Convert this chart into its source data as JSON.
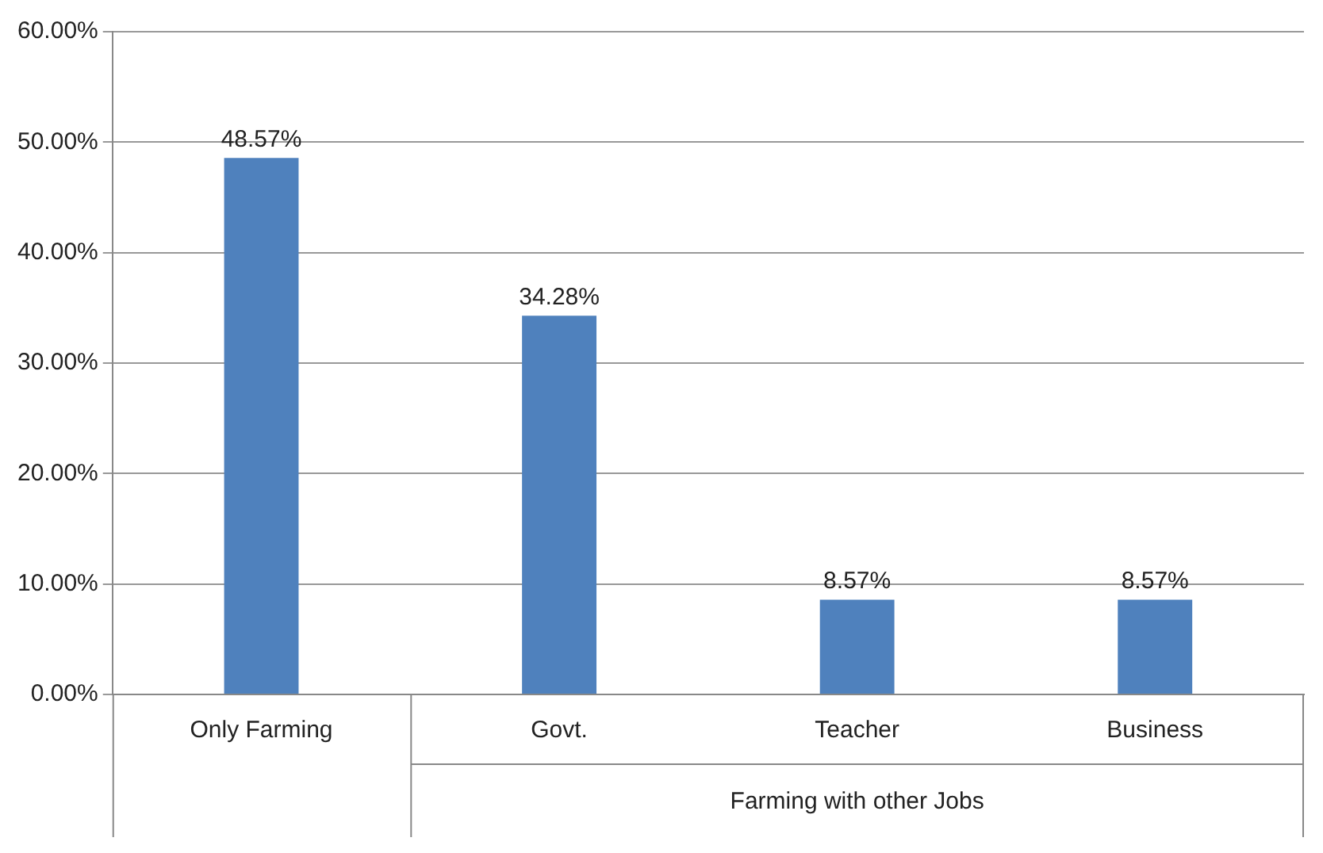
{
  "chart_data": {
    "type": "bar",
    "categories": [
      "Only Farming",
      "Govt.",
      "Teacher",
      "Business"
    ],
    "values": [
      48.57,
      34.28,
      8.57,
      8.57
    ],
    "value_labels": [
      "48.57%",
      "34.28%",
      "8.57%",
      "8.57%"
    ],
    "color": "#4f81bd",
    "ylim": [
      0,
      60
    ],
    "yticks": [
      {
        "value": 0,
        "label": "0.00%"
      },
      {
        "value": 10,
        "label": "10.00%"
      },
      {
        "value": 20,
        "label": "20.00%"
      },
      {
        "value": 30,
        "label": "30.00%"
      },
      {
        "value": 40,
        "label": "40.00%"
      },
      {
        "value": 50,
        "label": "50.00%"
      },
      {
        "value": 60,
        "label": "60.00%"
      }
    ],
    "grid": "y",
    "annotations": [
      "Farming with other Jobs"
    ]
  }
}
